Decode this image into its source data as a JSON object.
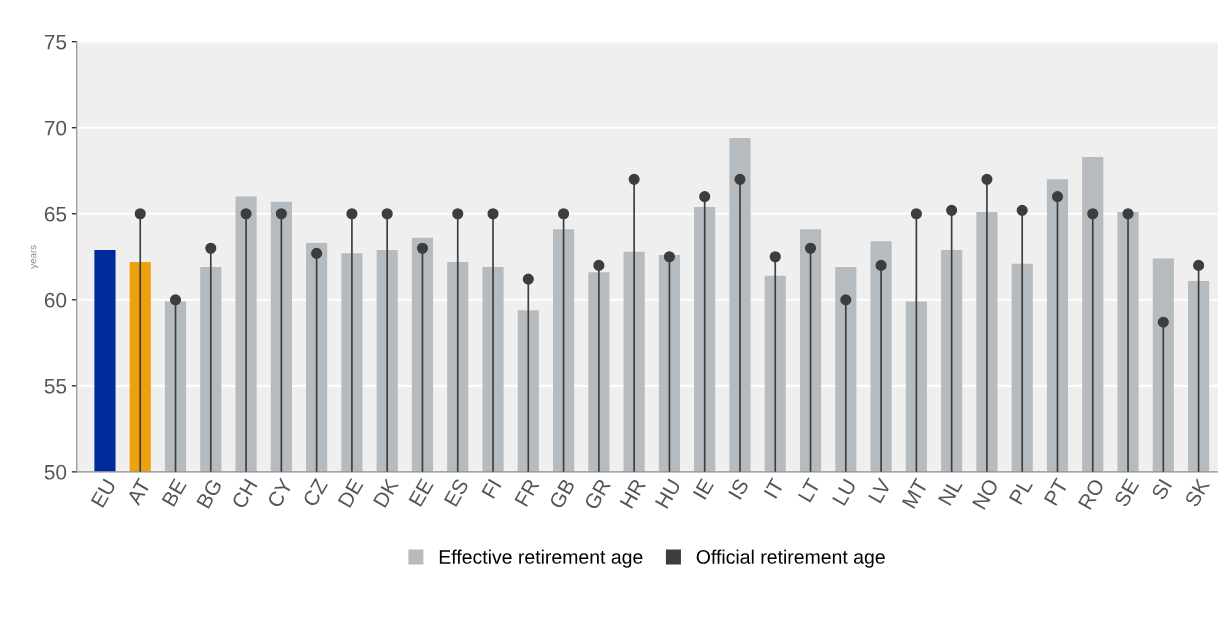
{
  "chart_data": {
    "type": "bar",
    "ylabel": "years",
    "categories": [
      "EU",
      "AT",
      "BE",
      "BG",
      "CH",
      "CY",
      "CZ",
      "DE",
      "DK",
      "EE",
      "ES",
      "FI",
      "FR",
      "GB",
      "GR",
      "HR",
      "HU",
      "IE",
      "IS",
      "IT",
      "LT",
      "LU",
      "LV",
      "MT",
      "NL",
      "NO",
      "PL",
      "PT",
      "RO",
      "SE",
      "SI",
      "SK"
    ],
    "series": [
      {
        "name": "Effective retirement age",
        "type": "bar",
        "color": "#b6bbbf",
        "colors": [
          "#002b9a",
          "#eda10c",
          "#b6bbbf",
          "#b6bbbf",
          "#b6bbbf",
          "#b6bbbf",
          "#b6bbbf",
          "#b6bbbf",
          "#b6bbbf",
          "#b6bbbf",
          "#b6bbbf",
          "#b6bbbf",
          "#b6bbbf",
          "#b6bbbf",
          "#b6bbbf",
          "#b6bbbf",
          "#b6bbbf",
          "#b6bbbf",
          "#b6bbbf",
          "#b6bbbf",
          "#b6bbbf",
          "#b6bbbf",
          "#b6bbbf",
          "#b6bbbf",
          "#b6bbbf",
          "#b6bbbf",
          "#b6bbbf",
          "#b6bbbf",
          "#b6bbbf",
          "#b6bbbf",
          "#b6bbbf",
          "#b6bbbf"
        ],
        "values": [
          62.9,
          62.2,
          59.9,
          61.9,
          66.0,
          65.7,
          63.3,
          62.7,
          62.9,
          63.6,
          62.2,
          61.9,
          59.4,
          64.1,
          61.6,
          62.8,
          62.6,
          65.4,
          69.4,
          61.4,
          64.1,
          61.9,
          63.4,
          59.9,
          62.9,
          65.1,
          62.1,
          67.0,
          68.3,
          65.1,
          62.4,
          61.1
        ]
      },
      {
        "name": "Official retirement age",
        "type": "lollipop",
        "color": "#3d3d3d",
        "values": [
          null,
          65.0,
          60.0,
          63.0,
          65.0,
          65.0,
          62.7,
          65.0,
          65.0,
          63.0,
          65.0,
          65.0,
          61.2,
          65.0,
          62.0,
          67.0,
          62.5,
          66.0,
          67.0,
          62.5,
          63.0,
          60.0,
          62.0,
          65.0,
          65.2,
          67.0,
          65.2,
          66.0,
          65.0,
          65.0,
          58.7,
          62.0
        ]
      }
    ],
    "ylim": [
      50,
      75
    ],
    "yticks": [
      50,
      55,
      60,
      65,
      70,
      75
    ],
    "grid": "y",
    "legend": "bottom",
    "marker": "circle"
  }
}
